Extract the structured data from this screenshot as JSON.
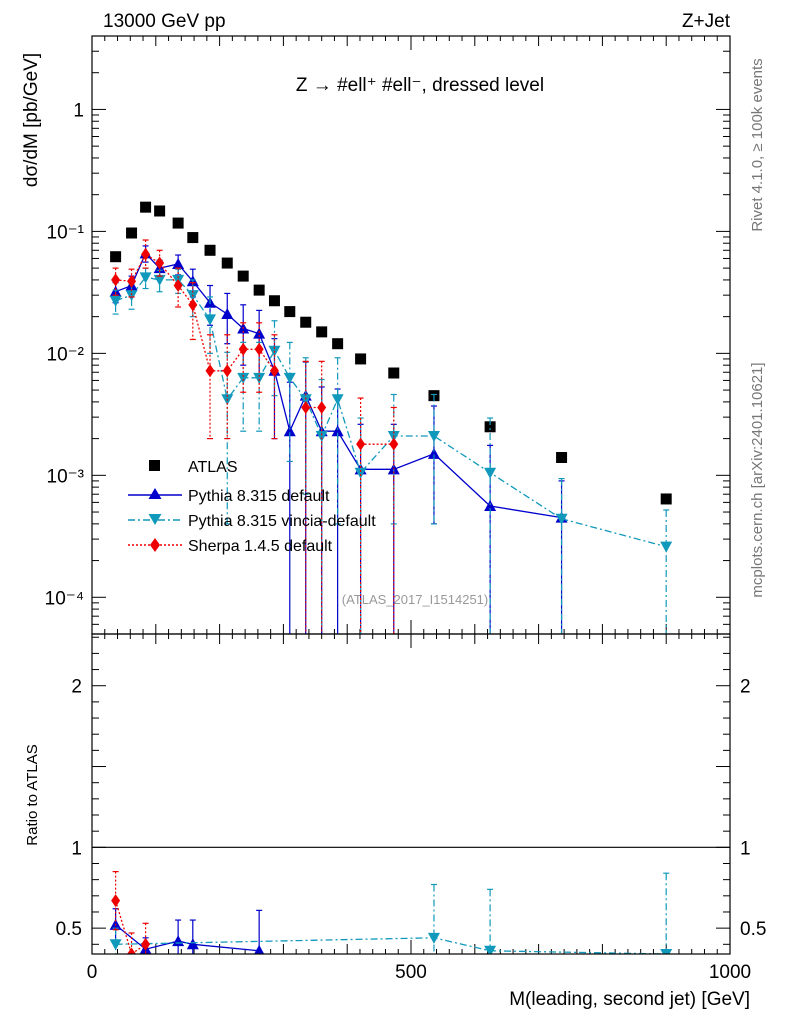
{
  "header": {
    "left": "13000 GeV pp",
    "right": "Z+Jet",
    "process_title": "Z → #ell⁺ #ell⁻, dressed level",
    "analysis_id": "(ATLAS_2017_I1514251)",
    "side_rivet": "Rivet 4.1.0, ≥ 100k events",
    "side_mcplots": "mcplots.cern.ch [arXiv:2401.10621]"
  },
  "colors": {
    "atlas": "#000000",
    "pythia": "#0000cc",
    "vincia": "#1199bb",
    "sherpa": "#ee0000"
  },
  "chart_data": [
    {
      "type": "scatter",
      "panel": "main",
      "ylabel": "dσ/dM [pb/GeV]",
      "yscale": "log",
      "xlim": [
        0,
        1000
      ],
      "ylim": [
        5e-05,
        4
      ],
      "y_ticks": [
        {
          "value": 1,
          "label": "1"
        },
        {
          "value": 0.1,
          "label": "10⁻¹"
        },
        {
          "value": 0.01,
          "label": "10⁻²"
        },
        {
          "value": 0.001,
          "label": "10⁻³"
        },
        {
          "value": 0.0001,
          "label": "10⁻⁴"
        }
      ],
      "legend_position": "bottom-left",
      "x": [
        37,
        62,
        84,
        106,
        135,
        158,
        185,
        212,
        237,
        262,
        286,
        310,
        335,
        360,
        385,
        421,
        473,
        536,
        624,
        736,
        900
      ],
      "series": [
        {
          "name": "ATLAS",
          "style": "squares",
          "values": [
            0.062,
            0.097,
            0.158,
            0.147,
            0.117,
            0.089,
            0.07,
            0.055,
            0.043,
            0.033,
            0.027,
            0.022,
            0.018,
            0.015,
            0.012,
            0.009,
            0.0069,
            0.0045,
            0.0025,
            0.0014,
            0.00064
          ]
        },
        {
          "name": "Pythia 8.315 default",
          "style": "solid-triangle-up",
          "values": [
            0.032,
            0.036,
            0.066,
            0.05,
            0.054,
            0.039,
            0.026,
            0.021,
            0.016,
            0.0145,
            0.0072,
            0.0023,
            0.0045,
            0.0023,
            0.0023,
            0.00112,
            0.00112,
            0.0015,
            0.00056,
            0.00045,
            null
          ],
          "err_low": [
            0.006,
            0.007,
            0.01,
            0.008,
            0.01,
            0.01,
            0.009,
            0.009,
            0.008,
            0.008,
            0.0052,
            0.0023,
            0.0045,
            0.0023,
            0.0023,
            0.00112,
            0.00112,
            0.0011,
            0.00056,
            0.00045,
            null
          ],
          "err_high": [
            0.006,
            0.007,
            0.01,
            0.008,
            0.01,
            0.01,
            0.01,
            0.01,
            0.009,
            0.008,
            0.006,
            0.0035,
            0.004,
            0.003,
            0.0028,
            0.0015,
            0.0015,
            0.0022,
            0.0012,
            0.00045,
            null
          ]
        },
        {
          "name": "Pythia 8.315 vincia-default",
          "style": "dashdot-triangle-down",
          "values": [
            0.027,
            0.03,
            0.042,
            0.04,
            0.04,
            0.03,
            0.019,
            0.0042,
            0.0063,
            0.0063,
            0.0105,
            0.0063,
            0.0042,
            0.0021,
            0.0042,
            0.00105,
            0.0021,
            0.0021,
            0.00105,
            0.00044,
            0.00026
          ],
          "err_low": [
            0.006,
            0.007,
            0.008,
            0.008,
            0.009,
            0.01,
            0.009,
            0.0038,
            0.004,
            0.004,
            0.006,
            0.005,
            0.0035,
            0.0021,
            0.0038,
            0.00105,
            0.0017,
            0.0017,
            0.00105,
            0.00044,
            0.00026
          ],
          "err_high": [
            0.006,
            0.007,
            0.008,
            0.008,
            0.009,
            0.01,
            0.01,
            0.006,
            0.006,
            0.006,
            0.008,
            0.006,
            0.005,
            0.004,
            0.005,
            0.0019,
            0.0025,
            0.0025,
            0.0019,
            0.0005,
            0.00026
          ]
        },
        {
          "name": "Sherpa 1.4.5 default",
          "style": "dotted-diamond",
          "values": [
            0.04,
            0.039,
            0.065,
            0.055,
            0.036,
            0.025,
            0.0072,
            0.0072,
            0.0108,
            0.0108,
            0.0072,
            null,
            0.0036,
            0.0036,
            null,
            0.0018,
            0.0018,
            null,
            null,
            null,
            null
          ],
          "err_low": [
            0.01,
            0.01,
            0.015,
            0.012,
            0.012,
            0.012,
            0.0052,
            0.0052,
            0.006,
            0.006,
            0.0052,
            null,
            0.0036,
            0.0036,
            null,
            0.0018,
            0.0018,
            null,
            null,
            null,
            null
          ],
          "err_high": [
            0.01,
            0.01,
            0.02,
            0.015,
            0.014,
            0.013,
            0.007,
            0.007,
            0.007,
            0.007,
            0.007,
            null,
            0.005,
            0.005,
            null,
            0.0025,
            0.0018,
            null,
            null,
            null,
            null
          ]
        }
      ]
    },
    {
      "type": "scatter",
      "panel": "ratio",
      "ylabel": "Ratio to ATLAS",
      "xlabel": "M(leading, second jet) [GeV]",
      "xlim": [
        0,
        1000
      ],
      "ylim": [
        0.34,
        2.32
      ],
      "x_ticks": [
        {
          "value": 0,
          "label": "0"
        },
        {
          "value": 500,
          "label": "500"
        },
        {
          "value": 1000,
          "label": "1000"
        }
      ],
      "y_ticks": [
        {
          "value": 0.5,
          "label": "0.5"
        },
        {
          "value": 1,
          "label": "1"
        },
        {
          "value": 2,
          "label": "2"
        }
      ],
      "reference_line": 1,
      "series": [
        {
          "name": "Pythia 8.315 default",
          "points": [
            {
              "x": 37,
              "y": 0.52,
              "lo": 0.42,
              "hi": 0.62
            },
            {
              "x": 84,
              "y": 0.37,
              "lo": 0.3,
              "hi": 0.44
            },
            {
              "x": 135,
              "y": 0.42,
              "lo": 0.32,
              "hi": 0.55
            },
            {
              "x": 158,
              "y": 0.4,
              "lo": 0.3,
              "hi": 0.55
            },
            {
              "x": 262,
              "y": 0.36,
              "lo": 0.25,
              "hi": 0.61
            }
          ]
        },
        {
          "name": "Pythia 8.315 vincia-default",
          "points": [
            {
              "x": 37,
              "y": 0.4,
              "lo": 0.3,
              "hi": 0.5
            },
            {
              "x": 536,
              "y": 0.44,
              "lo": 0.1,
              "hi": 0.77
            },
            {
              "x": 624,
              "y": 0.36,
              "lo": 0.0,
              "hi": 0.74
            },
            {
              "x": 900,
              "y": 0.34,
              "lo": 0.0,
              "hi": 0.84
            }
          ]
        },
        {
          "name": "Sherpa 1.4.5 default",
          "points": [
            {
              "x": 37,
              "y": 0.67,
              "lo": 0.49,
              "hi": 0.85
            },
            {
              "x": 62,
              "y": 0.34,
              "lo": 0.2,
              "hi": 0.47
            },
            {
              "x": 84,
              "y": 0.4,
              "lo": 0.28,
              "hi": 0.53
            }
          ]
        }
      ]
    }
  ]
}
